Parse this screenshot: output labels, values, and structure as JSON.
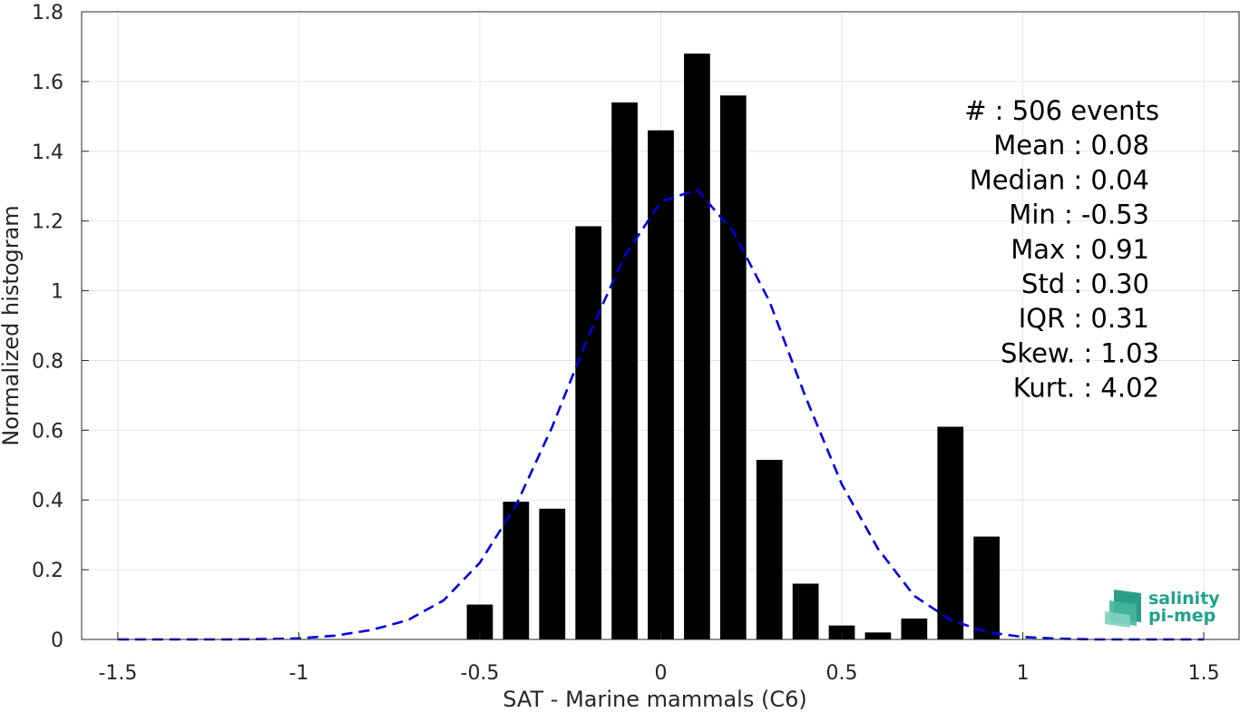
{
  "chart_data": {
    "type": "bar",
    "xlabel": "SAT - Marine mammals (C6)",
    "ylabel": "Normalized histogram",
    "xlim": [
      -1.6,
      1.6
    ],
    "ylim": [
      0,
      1.8
    ],
    "grid": true,
    "x_ticks": [
      -1.5,
      -1,
      -0.5,
      0,
      0.5,
      1,
      1.5
    ],
    "x_tick_labels": [
      "-1.5",
      "-1",
      "-0.5",
      "0",
      "0.5",
      "1",
      "1.5"
    ],
    "y_ticks": [
      0,
      0.2,
      0.4,
      0.6,
      0.8,
      1,
      1.2,
      1.4,
      1.6,
      1.8
    ],
    "y_tick_labels": [
      "0",
      "0.2",
      "0.4",
      "0.6",
      "0.8",
      "1",
      "1.2",
      "1.4",
      "1.6",
      "1.8"
    ],
    "bar_width": 0.072,
    "bars": [
      {
        "x": -0.5,
        "y": 0.1
      },
      {
        "x": -0.4,
        "y": 0.395
      },
      {
        "x": -0.3,
        "y": 0.375
      },
      {
        "x": -0.2,
        "y": 1.185
      },
      {
        "x": -0.1,
        "y": 1.54
      },
      {
        "x": 0.0,
        "y": 1.46
      },
      {
        "x": 0.1,
        "y": 1.68
      },
      {
        "x": 0.2,
        "y": 1.56
      },
      {
        "x": 0.3,
        "y": 0.515
      },
      {
        "x": 0.4,
        "y": 0.16
      },
      {
        "x": 0.5,
        "y": 0.04
      },
      {
        "x": 0.6,
        "y": 0.02
      },
      {
        "x": 0.7,
        "y": 0.06
      },
      {
        "x": 0.8,
        "y": 0.61
      },
      {
        "x": 0.9,
        "y": 0.295
      }
    ],
    "fit_curve": {
      "style": "dashed",
      "color": "#0000dd",
      "x": [
        -1.5,
        -1.4,
        -1.3,
        -1.2,
        -1.1,
        -1.0,
        -0.9,
        -0.8,
        -0.7,
        -0.6,
        -0.5,
        -0.4,
        -0.3,
        -0.2,
        -0.1,
        0.0,
        0.1,
        0.2,
        0.3,
        0.4,
        0.5,
        0.6,
        0.7,
        0.8,
        0.9,
        1.0,
        1.1,
        1.2,
        1.3,
        1.4,
        1.5
      ],
      "y": [
        0.0,
        0.0,
        0.0,
        0.0,
        0.001,
        0.003,
        0.011,
        0.027,
        0.055,
        0.112,
        0.22,
        0.385,
        0.61,
        0.87,
        1.1,
        1.255,
        1.29,
        1.17,
        0.97,
        0.695,
        0.445,
        0.26,
        0.125,
        0.056,
        0.021,
        0.007,
        0.002,
        0.0,
        0.0,
        0.0,
        0.0
      ]
    },
    "stats": [
      "#  : 506 events",
      "Mean : 0.08",
      "Median : 0.04",
      "Min : -0.53",
      "Max : 0.91",
      "Std : 0.30",
      "IQR : 0.31",
      "Skew. : 1.03",
      "Kurt. : 4.02"
    ],
    "colors": {
      "bars": "#000000",
      "fit": "#0000dd",
      "grid": "#e6e6e6",
      "axis": "#262626",
      "logo": "#1fa38a"
    }
  },
  "logo": {
    "line1": "salinity",
    "line2": "pi-mep"
  }
}
